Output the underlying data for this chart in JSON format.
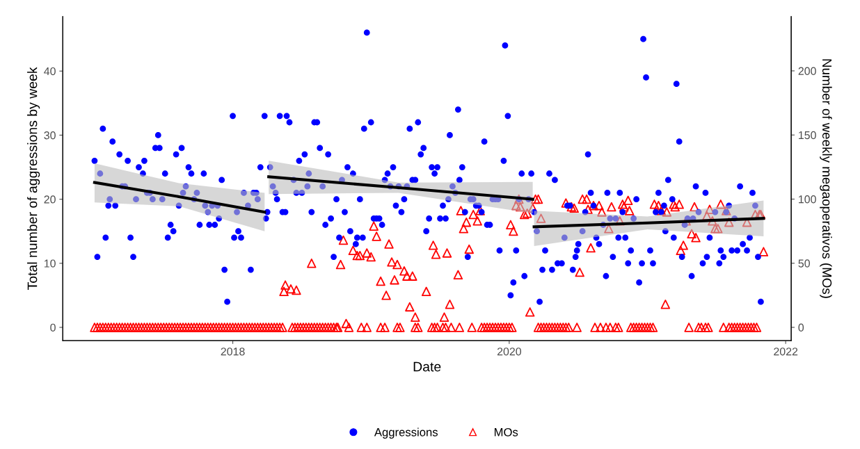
{
  "chart_data": {
    "type": "scatter",
    "xlabel": "Date",
    "ylabel": "Total number of aggressions by week",
    "y2label": "Number of weekly megaoperativos (MOs)",
    "xlim": [
      2016.77,
      2022.04
    ],
    "xticks": [
      2018,
      2020,
      2022
    ],
    "ylim": [
      -2.06,
      48.5
    ],
    "yticks": [
      0,
      10,
      20,
      30,
      40
    ],
    "y2lim": [
      -10.3,
      242.3
    ],
    "y2ticks": [
      0,
      50,
      100,
      150,
      200
    ],
    "grid": false,
    "legend": "bottom",
    "series": [
      {
        "name": "Aggressions",
        "marker": "circle",
        "color": "#0000ff",
        "x": [
          2017.0,
          2017.02,
          2017.04,
          2017.06,
          2017.08,
          2017.1,
          2017.11,
          2017.13,
          2017.15,
          2017.18,
          2017.2,
          2017.22,
          2017.24,
          2017.26,
          2017.28,
          2017.3,
          2017.32,
          2017.35,
          2017.36,
          2017.38,
          2017.4,
          2017.42,
          2017.44,
          2017.46,
          2017.47,
          2017.49,
          2017.51,
          2017.53,
          2017.55,
          2017.57,
          2017.59,
          2017.61,
          2017.63,
          2017.64,
          2017.66,
          2017.68,
          2017.7,
          2017.72,
          2017.74,
          2017.76,
          2017.79,
          2017.8,
          2017.82,
          2017.83,
          2017.85,
          2017.87,
          2017.89,
          2017.9,
          2017.92,
          2017.94,
          2017.96,
          2018.0,
          2018.01,
          2018.03,
          2018.04,
          2018.06,
          2018.08,
          2018.11,
          2018.13,
          2018.15,
          2018.17,
          2018.18,
          2018.2,
          2018.23,
          2018.24,
          2018.25,
          2018.27,
          2018.29,
          2018.31,
          2018.32,
          2018.34,
          2018.36,
          2018.38,
          2018.39,
          2018.41,
          2018.44,
          2018.46,
          2018.48,
          2018.5,
          2018.52,
          2018.54,
          2018.55,
          2018.57,
          2018.59,
          2018.61,
          2018.63,
          2018.65,
          2018.67,
          2018.69,
          2018.71,
          2018.73,
          2018.75,
          2018.77,
          2018.79,
          2018.81,
          2018.83,
          2018.85,
          2018.87,
          2018.89,
          2018.9,
          2018.92,
          2018.94,
          2018.95,
          2018.97,
          2019.0,
          2019.02,
          2019.04,
          2019.06,
          2019.08,
          2019.1,
          2019.12,
          2019.14,
          2019.16,
          2019.18,
          2019.2,
          2019.22,
          2019.24,
          2019.26,
          2019.28,
          2019.3,
          2019.32,
          2019.34,
          2019.36,
          2019.38,
          2019.4,
          2019.42,
          2019.44,
          2019.46,
          2019.48,
          2019.5,
          2019.52,
          2019.54,
          2019.56,
          2019.57,
          2019.59,
          2019.61,
          2019.63,
          2019.64,
          2019.66,
          2019.68,
          2019.7,
          2019.72,
          2019.74,
          2019.76,
          2019.78,
          2019.8,
          2019.82,
          2019.84,
          2019.86,
          2019.88,
          2019.9,
          2019.92,
          2019.93,
          2019.96,
          2019.97,
          2019.99,
          2020.01,
          2020.03,
          2020.05,
          2020.07,
          2020.09,
          2020.11,
          2020.14,
          2020.16,
          2020.18,
          2020.2,
          2020.22,
          2020.24,
          2020.26,
          2020.29,
          2020.31,
          2020.33,
          2020.35,
          2020.38,
          2020.4,
          2020.42,
          2020.44,
          2020.46,
          2020.48,
          2020.49,
          2020.5,
          2020.53,
          2020.55,
          2020.57,
          2020.59,
          2020.61,
          2020.63,
          2020.65,
          2020.68,
          2020.7,
          2020.71,
          2020.73,
          2020.75,
          2020.77,
          2020.79,
          2020.8,
          2020.82,
          2020.84,
          2020.86,
          2020.88,
          2020.9,
          2020.92,
          2020.94,
          2020.96,
          2020.97,
          2020.99,
          2021.02,
          2021.04,
          2021.06,
          2021.08,
          2021.1,
          2021.12,
          2021.13,
          2021.15,
          2021.18,
          2021.19,
          2021.21,
          2021.23,
          2021.25,
          2021.27,
          2021.29,
          2021.32,
          2021.33,
          2021.35,
          2021.37,
          2021.4,
          2021.42,
          2021.43,
          2021.45,
          2021.49,
          2021.52,
          2021.53,
          2021.55,
          2021.57,
          2021.59,
          2021.61,
          2021.63,
          2021.65,
          2021.67,
          2021.69,
          2021.72,
          2021.74,
          2021.76,
          2021.78,
          2021.8,
          2021.82
        ],
        "values": [
          26,
          11,
          24,
          31,
          14,
          19,
          20,
          29,
          19,
          27,
          22,
          22,
          26,
          14,
          11,
          20,
          25,
          24,
          26,
          21,
          21,
          20,
          28,
          30,
          28,
          20,
          24,
          14,
          16,
          15,
          27,
          19,
          28,
          21,
          22,
          25,
          24,
          20,
          21,
          16,
          24,
          19,
          18,
          16,
          19,
          16,
          19,
          17,
          23,
          9,
          4,
          33,
          14,
          18,
          15,
          14,
          21,
          19,
          9,
          21,
          21,
          20,
          25,
          33,
          17,
          18,
          25,
          22,
          21,
          20,
          33,
          18,
          18,
          33,
          32,
          23,
          21,
          26,
          21,
          27,
          22,
          24,
          18,
          32,
          32,
          28,
          22,
          16,
          27,
          17,
          11,
          20,
          14,
          23,
          18,
          25,
          15,
          24,
          13,
          14,
          20,
          14,
          31,
          46,
          32,
          17,
          17,
          17,
          16,
          23,
          24,
          22,
          25,
          19,
          22,
          18,
          20,
          22,
          31,
          23,
          23,
          32,
          27,
          28,
          15,
          17,
          25,
          24,
          25,
          17,
          19,
          17,
          20,
          30,
          22,
          21,
          34,
          23,
          25,
          18,
          11,
          20,
          20,
          19,
          19,
          18,
          29,
          16,
          16,
          20,
          20,
          20,
          12,
          26,
          44,
          33,
          5,
          7,
          12,
          20,
          24,
          8,
          20,
          24,
          18,
          15,
          4,
          9,
          12,
          24,
          9,
          23,
          10,
          10,
          14,
          19,
          19,
          9,
          11,
          12,
          13,
          15,
          18,
          27,
          21,
          19,
          14,
          13,
          16,
          8,
          21,
          17,
          11,
          17,
          14,
          21,
          18,
          14,
          10,
          12,
          17,
          20,
          7,
          10,
          45,
          39,
          12,
          10,
          18,
          21,
          18,
          19,
          15,
          23,
          20,
          14,
          38,
          29,
          11,
          16,
          17,
          8,
          17,
          22,
          18,
          10,
          21,
          11,
          14,
          18,
          10,
          12,
          11,
          18,
          19,
          12,
          17,
          12,
          22,
          13,
          12,
          14,
          21,
          19,
          11,
          4
        ]
      },
      {
        "name": "MOs",
        "marker": "triangle",
        "color": "#ff0000",
        "axis": "y2",
        "x": [
          2017.0,
          2017.02,
          2017.04,
          2017.06,
          2017.08,
          2017.1,
          2017.12,
          2017.14,
          2017.16,
          2017.18,
          2017.2,
          2017.22,
          2017.24,
          2017.26,
          2017.28,
          2017.3,
          2017.32,
          2017.34,
          2017.36,
          2017.38,
          2017.4,
          2017.42,
          2017.44,
          2017.46,
          2017.48,
          2017.5,
          2017.52,
          2017.54,
          2017.56,
          2017.58,
          2017.6,
          2017.62,
          2017.64,
          2017.66,
          2017.68,
          2017.7,
          2017.72,
          2017.74,
          2017.76,
          2017.78,
          2017.8,
          2017.82,
          2017.84,
          2017.86,
          2017.88,
          2017.9,
          2017.92,
          2017.94,
          2017.96,
          2017.98,
          2018.0,
          2018.02,
          2018.04,
          2018.06,
          2018.08,
          2018.1,
          2018.12,
          2018.14,
          2018.16,
          2018.18,
          2018.2,
          2018.22,
          2018.24,
          2018.26,
          2018.28,
          2018.3,
          2018.32,
          2018.34,
          2018.36,
          2018.43,
          2018.45,
          2018.47,
          2018.49,
          2018.51,
          2018.53,
          2018.55,
          2018.57,
          2018.59,
          2018.61,
          2018.63,
          2018.65,
          2018.67,
          2018.69,
          2018.71,
          2018.73,
          2018.75,
          2018.76,
          2018.84,
          2018.93,
          2018.97,
          2019.07,
          2019.1,
          2019.19,
          2019.21,
          2019.32,
          2019.34,
          2019.44,
          2019.46,
          2019.48,
          2019.52,
          2019.54,
          2019.58,
          2019.64,
          2019.73,
          2019.8,
          2019.82,
          2019.84,
          2019.86,
          2019.88,
          2019.9,
          2019.92,
          2019.94,
          2019.96,
          2019.98,
          2020.0,
          2020.02,
          2020.21,
          2020.23,
          2020.25,
          2020.27,
          2020.29,
          2020.31,
          2020.33,
          2020.35,
          2020.37,
          2020.39,
          2020.41,
          2020.43,
          2020.49,
          2020.62,
          2020.66,
          2020.7,
          2020.73,
          2020.77,
          2020.79,
          2020.88,
          2020.9,
          2020.92,
          2020.94,
          2020.96,
          2020.98,
          2021.0,
          2021.02,
          2021.04,
          2021.3,
          2021.37,
          2021.39,
          2021.42,
          2021.44,
          2021.55,
          2021.59,
          2021.61,
          2021.63,
          2021.65,
          2021.67,
          2021.69,
          2021.71,
          2021.73,
          2021.75,
          2021.77,
          2021.79,
          2018.37,
          2018.38,
          2018.42,
          2018.46,
          2018.57,
          2018.78,
          2018.8,
          2018.82,
          2018.87,
          2018.9,
          2018.92,
          2018.97,
          2019.0,
          2019.02,
          2019.04,
          2019.07,
          2019.11,
          2019.13,
          2019.15,
          2019.17,
          2019.19,
          2019.24,
          2019.26,
          2019.28,
          2019.3,
          2019.32,
          2019.4,
          2019.45,
          2019.47,
          2019.53,
          2019.55,
          2019.57,
          2019.63,
          2019.65,
          2019.67,
          2019.69,
          2019.71,
          2019.74,
          2019.77,
          2019.79,
          2020.01,
          2020.03,
          2020.05,
          2020.07,
          2020.08,
          2020.11,
          2020.13,
          2020.15,
          2020.17,
          2020.19,
          2020.21,
          2020.23,
          2020.41,
          2020.45,
          2020.47,
          2020.51,
          2020.53,
          2020.56,
          2020.57,
          2020.59,
          2020.61,
          2020.65,
          2020.67,
          2020.72,
          2020.74,
          2020.8,
          2020.82,
          2020.83,
          2020.86,
          2020.87,
          2021.05,
          2021.08,
          2021.1,
          2021.13,
          2021.14,
          2021.19,
          2021.2,
          2021.23,
          2021.24,
          2021.26,
          2021.28,
          2021.32,
          2021.34,
          2021.35,
          2021.43,
          2021.45,
          2021.47,
          2021.49,
          2021.51,
          2021.53,
          2021.57,
          2021.59,
          2021.72,
          2021.78,
          2021.81,
          2021.82,
          2021.84
        ],
        "values": [
          0,
          0,
          0,
          0,
          0,
          0,
          0,
          0,
          0,
          0,
          0,
          0,
          0,
          0,
          0,
          0,
          0,
          0,
          0,
          0,
          0,
          0,
          0,
          0,
          0,
          0,
          0,
          0,
          0,
          0,
          0,
          0,
          0,
          0,
          0,
          0,
          0,
          0,
          0,
          0,
          0,
          0,
          0,
          0,
          0,
          0,
          0,
          0,
          0,
          0,
          0,
          0,
          0,
          0,
          0,
          0,
          0,
          0,
          0,
          0,
          0,
          0,
          0,
          0,
          0,
          0,
          0,
          0,
          0,
          0,
          0,
          0,
          0,
          0,
          0,
          0,
          0,
          0,
          0,
          0,
          0,
          0,
          0,
          0,
          0,
          0,
          0,
          0,
          0,
          0,
          0,
          0,
          0,
          0,
          0,
          0,
          0,
          0,
          0,
          0,
          0,
          0,
          0,
          0,
          0,
          0,
          0,
          0,
          0,
          0,
          0,
          0,
          0,
          0,
          0,
          0,
          0,
          0,
          0,
          0,
          0,
          0,
          0,
          0,
          0,
          0,
          0,
          0,
          0,
          0,
          0,
          0,
          0,
          0,
          0,
          0,
          0,
          0,
          0,
          0,
          0,
          0,
          0,
          0,
          0,
          0,
          0,
          0,
          0,
          0,
          0,
          0,
          0,
          0,
          0,
          0,
          0,
          0,
          0,
          0,
          0,
          28,
          33,
          30,
          29,
          50,
          49,
          68,
          3,
          60,
          56,
          56,
          58,
          55,
          79,
          71,
          36,
          25,
          65,
          51,
          37,
          49,
          44,
          40,
          16,
          40,
          8,
          28,
          64,
          57,
          8,
          58,
          18,
          41,
          91,
          77,
          82,
          61,
          88,
          83,
          91,
          80,
          75,
          95,
          100,
          94,
          88,
          89,
          12,
          93,
          100,
          100,
          85,
          97,
          94,
          93,
          43,
          100,
          100,
          92,
          62,
          95,
          95,
          90,
          77,
          94,
          83,
          96,
          94,
          99,
          91,
          96,
          95,
          91,
          18,
          90,
          96,
          94,
          96,
          60,
          64,
          83,
          73,
          94,
          70,
          87,
          92,
          83,
          77,
          77,
          96,
          91,
          82,
          82,
          88,
          88,
          88,
          59
        ]
      },
      {
        "type": "line",
        "color": "#000000",
        "x": [
          2017.0,
          2017.61,
          2018.23
        ],
        "values": [
          22.6,
          20.4,
          18.0
        ],
        "lower": [
          19.5,
          18.9,
          15.0
        ],
        "upper": [
          25.6,
          22.5,
          21.0
        ]
      },
      {
        "type": "line",
        "color": "#000000",
        "x": [
          2018.26,
          2019.2,
          2020.17
        ],
        "values": [
          23.5,
          21.8,
          20.0
        ],
        "lower": [
          20.8,
          21.0,
          17.8
        ],
        "upper": [
          26.0,
          22.6,
          22.7
        ]
      },
      {
        "type": "line",
        "color": "#000000",
        "x": [
          2020.18,
          2021.0,
          2021.84
        ],
        "values": [
          15.7,
          16.3,
          17.0
        ],
        "lower": [
          12.7,
          15.3,
          14.2
        ],
        "upper": [
          18.2,
          17.3,
          19.8
        ]
      }
    ]
  }
}
